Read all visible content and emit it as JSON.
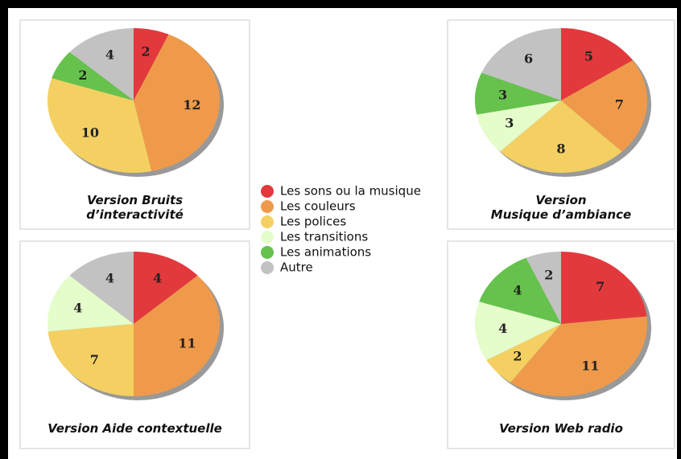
{
  "chart_data": {
    "type": "pie",
    "categories": [
      "Les sons ou la musique",
      "Les couleurs",
      "Les polices",
      "Les transitions",
      "Les animations",
      "Autre"
    ],
    "colors": [
      "#e2393d",
      "#ef9a4b",
      "#f4d062",
      "#e5fccb",
      "#66c24c",
      "#c2c2c2"
    ],
    "series": [
      {
        "name": "Version Bruits\nd’interactivité",
        "values": [
          2,
          12,
          10,
          0,
          2,
          4
        ]
      },
      {
        "name": "Version\nMusique d’ambiance",
        "values": [
          5,
          7,
          8,
          3,
          3,
          6
        ]
      },
      {
        "name": "Version Aide contextuelle",
        "values": [
          4,
          11,
          7,
          4,
          0,
          4
        ]
      },
      {
        "name": "Version Web radio",
        "values": [
          7,
          11,
          2,
          4,
          4,
          2
        ]
      }
    ]
  }
}
